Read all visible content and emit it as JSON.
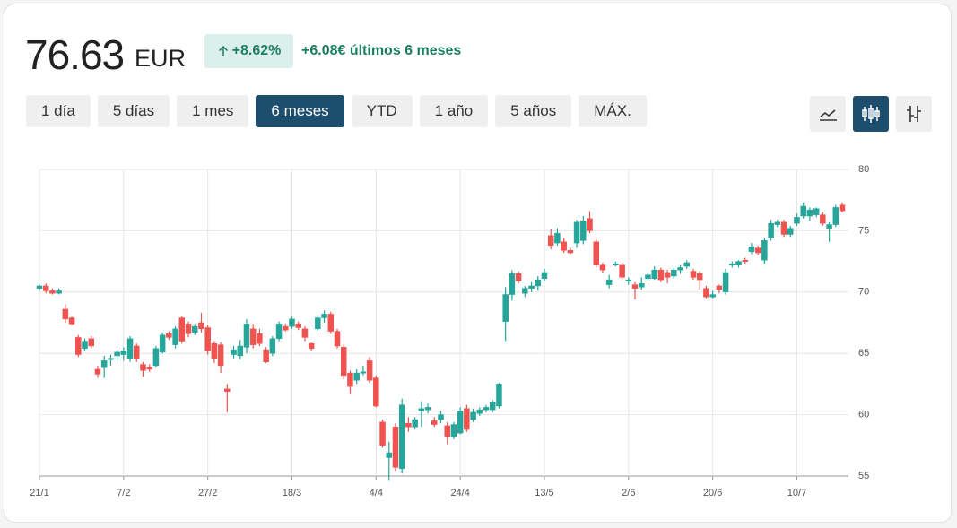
{
  "header": {
    "price": "76.63",
    "currency": "EUR",
    "change_pct": "+8.62%",
    "change_text": "+6.08€ últimos 6 meses"
  },
  "controls": {
    "ranges": [
      "1 día",
      "5 días",
      "1 mes",
      "6 meses",
      "YTD",
      "1 año",
      "5 años",
      "MÁX."
    ],
    "active": "6 meses"
  },
  "chart_data": {
    "type": "candlestick",
    "categories": [
      "21/1",
      null,
      null,
      null,
      null,
      null,
      null,
      null,
      null,
      null,
      null,
      null,
      null,
      "7/2",
      null,
      null,
      null,
      null,
      null,
      null,
      null,
      null,
      null,
      null,
      null,
      null,
      "27/2",
      null,
      null,
      null,
      null,
      null,
      null,
      null,
      null,
      null,
      null,
      null,
      null,
      "18/3",
      null,
      null,
      null,
      null,
      null,
      null,
      null,
      null,
      null,
      null,
      null,
      null,
      "4/4",
      null,
      null,
      null,
      null,
      null,
      null,
      null,
      null,
      null,
      null,
      null,
      null,
      "24/4",
      null,
      null,
      null,
      null,
      null,
      null,
      null,
      null,
      null,
      null,
      null,
      null,
      "13/5",
      null,
      null,
      null,
      null,
      null,
      null,
      null,
      null,
      null,
      null,
      null,
      null,
      "2/6",
      null,
      null,
      null,
      null,
      null,
      null,
      null,
      null,
      null,
      null,
      null,
      null,
      "20/6",
      null,
      null,
      null,
      null,
      null,
      null,
      null,
      null,
      null,
      null,
      null,
      null,
      "10/7",
      null,
      null,
      null,
      null,
      null,
      null,
      null
    ],
    "open": [
      70.3,
      70.5,
      70.1,
      69.9,
      68.6,
      67.9,
      66.3,
      65.4,
      66.2,
      63.7,
      63.9,
      64.5,
      64.8,
      64.9,
      64.6,
      65.6,
      64.1,
      63.9,
      64.0,
      65.1,
      66.6,
      65.7,
      67.9,
      67.4,
      66.7,
      67.5,
      67.1,
      65.8,
      65.7,
      62.1,
      64.9,
      64.8,
      65.5,
      67.0,
      66.6,
      65.3,
      65.0,
      66.2,
      67.2,
      67.2,
      67.4,
      67.0,
      65.8,
      67.0,
      67.9,
      68.2,
      66.8,
      65.5,
      63.4,
      62.8,
      63.4,
      64.4,
      63.0,
      59.4,
      56.5,
      59.0,
      55.6,
      59.3,
      59.0,
      60.3,
      60.4,
      59.5,
      59.6,
      59.1,
      58.2,
      58.5,
      60.5,
      59.6,
      60.1,
      60.4,
      60.4,
      60.7,
      67.6,
      69.8,
      71.5,
      69.9,
      70.3,
      70.5,
      71.1,
      74.6,
      74.0,
      74.1,
      73.4,
      74.0,
      74.2,
      76.0,
      74.1,
      72.2,
      70.6,
      72.2,
      72.2,
      70.9,
      70.6,
      70.4,
      71.1,
      71.1,
      71.8,
      71.6,
      71.3,
      71.8,
      72.1,
      71.7,
      71.5,
      70.3,
      69.6,
      70.5,
      70.0,
      72.2,
      72.2,
      72.6,
      73.3,
      73.6,
      72.6,
      74.4,
      75.5,
      75.7,
      74.7,
      75.6,
      76.2,
      76.2,
      76.3,
      76.3,
      75.2,
      75.5,
      77.1
    ],
    "high": [
      70.6,
      70.7,
      70.3,
      70.3,
      69.0,
      68.0,
      66.5,
      66.2,
      66.4,
      64.0,
      64.8,
      64.9,
      65.3,
      65.5,
      66.4,
      65.8,
      64.3,
      64.1,
      65.6,
      66.7,
      66.8,
      67.2,
      68.0,
      67.6,
      67.4,
      68.3,
      67.3,
      66.0,
      65.9,
      62.5,
      65.6,
      66.1,
      67.8,
      67.4,
      67.0,
      65.5,
      66.4,
      67.6,
      67.4,
      68.0,
      67.6,
      67.2,
      65.9,
      68.1,
      68.5,
      68.4,
      67.0,
      65.7,
      63.6,
      63.7,
      64.0,
      64.7,
      63.2,
      59.6,
      57.8,
      59.3,
      61.3,
      59.8,
      59.8,
      61.1,
      60.9,
      59.8,
      60.3,
      59.4,
      59.4,
      60.6,
      60.8,
      60.5,
      60.6,
      60.8,
      61.2,
      62.6,
      70.4,
      71.8,
      71.7,
      70.5,
      70.8,
      71.3,
      71.9,
      75.1,
      75.2,
      74.4,
      73.6,
      75.9,
      76.2,
      76.6,
      74.3,
      72.4,
      71.4,
      72.5,
      72.4,
      71.2,
      70.8,
      71.2,
      71.6,
      72.1,
      72.0,
      71.8,
      72.0,
      72.2,
      72.6,
      71.9,
      71.7,
      70.5,
      70.1,
      70.6,
      71.9,
      72.5,
      72.6,
      72.8,
      74.0,
      73.8,
      74.4,
      75.9,
      75.9,
      75.9,
      75.4,
      76.4,
      77.3,
      76.9,
      76.9,
      76.5,
      75.7,
      77.1,
      77.3
    ],
    "low": [
      70.1,
      69.9,
      69.8,
      69.8,
      67.5,
      67.3,
      64.7,
      65.2,
      65.4,
      63.0,
      63.0,
      64.0,
      64.4,
      64.4,
      64.3,
      64.3,
      63.1,
      63.5,
      63.9,
      65.0,
      66.1,
      65.4,
      65.8,
      66.3,
      66.5,
      66.7,
      64.9,
      64.2,
      63.4,
      60.2,
      64.6,
      64.5,
      65.0,
      65.4,
      65.6,
      64.2,
      64.8,
      66.0,
      66.8,
      67.0,
      66.9,
      66.0,
      65.2,
      66.8,
      67.5,
      66.6,
      65.4,
      62.9,
      61.7,
      62.5,
      63.2,
      62.6,
      60.6,
      57.3,
      54.6,
      55.4,
      55.2,
      58.6,
      58.8,
      59.0,
      60.1,
      59.0,
      59.3,
      57.6,
      58.0,
      58.4,
      58.6,
      59.4,
      59.9,
      60.2,
      60.2,
      60.5,
      66.0,
      69.3,
      70.7,
      69.6,
      70.0,
      70.1,
      70.9,
      73.5,
      73.8,
      73.2,
      73.1,
      73.6,
      73.9,
      74.8,
      72.0,
      71.6,
      70.3,
      72.1,
      71.0,
      70.6,
      69.4,
      70.2,
      70.9,
      71.0,
      70.8,
      70.7,
      71.1,
      71.5,
      71.9,
      71.0,
      70.2,
      69.5,
      69.5,
      69.9,
      69.8,
      72.0,
      72.0,
      72.3,
      73.1,
      73.0,
      72.3,
      74.2,
      75.3,
      74.5,
      74.5,
      75.4,
      76.0,
      75.8,
      76.1,
      75.4,
      74.1,
      75.3,
      76.5
    ],
    "close": [
      70.5,
      70.1,
      69.9,
      70.1,
      67.8,
      67.4,
      64.9,
      66.0,
      65.6,
      63.3,
      64.4,
      64.6,
      65.1,
      65.2,
      66.2,
      64.6,
      63.6,
      63.7,
      65.4,
      66.5,
      66.3,
      67.0,
      66.0,
      66.6,
      67.2,
      67.0,
      65.2,
      64.6,
      64.0,
      61.9,
      65.3,
      65.6,
      67.4,
      65.7,
      65.8,
      64.3,
      66.2,
      67.4,
      66.9,
      67.8,
      67.1,
      66.3,
      65.4,
      67.9,
      68.2,
      66.8,
      65.6,
      63.2,
      62.3,
      63.4,
      63.5,
      62.8,
      60.7,
      57.5,
      56.9,
      55.7,
      60.8,
      59.0,
      59.6,
      60.5,
      60.6,
      59.2,
      60.0,
      58.2,
      59.2,
      60.3,
      58.8,
      60.2,
      60.4,
      60.6,
      61.0,
      62.5,
      69.8,
      71.5,
      70.9,
      70.3,
      70.5,
      71.0,
      71.6,
      73.8,
      74.8,
      73.4,
      73.2,
      75.7,
      75.8,
      75.0,
      72.2,
      71.8,
      71.0,
      72.3,
      71.2,
      71.0,
      70.3,
      70.7,
      71.4,
      71.8,
      71.0,
      71.2,
      71.8,
      72.0,
      72.4,
      71.2,
      71.0,
      69.6,
      69.8,
      70.2,
      71.6,
      72.3,
      72.5,
      72.5,
      73.7,
      73.2,
      74.2,
      75.6,
      75.7,
      74.7,
      75.2,
      76.1,
      77.0,
      76.7,
      76.8,
      75.6,
      75.5,
      76.9,
      76.63
    ],
    "up_color": "#26a69a",
    "down_color": "#ef5350",
    "ylim": [
      55,
      80
    ],
    "yticks": [
      55,
      60,
      65,
      70,
      75,
      80
    ],
    "grid": true
  }
}
